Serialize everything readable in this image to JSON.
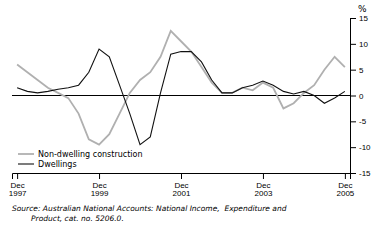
{
  "chart_data": {
    "type": "line",
    "ylabel": "%",
    "annotations": [
      "Source: Australian National Accounts: National Income,  Expenditure and",
      "        Product, cat. no. 5206.0."
    ],
    "categories": [
      "Dec\n1997",
      null,
      null,
      null,
      null,
      null,
      null,
      null,
      "Dec\n1999",
      null,
      null,
      null,
      null,
      null,
      null,
      null,
      "Dec\n2001",
      null,
      null,
      null,
      null,
      null,
      null,
      null,
      "Dec\n2003",
      null,
      null,
      null,
      null,
      null,
      null,
      null,
      "Dec\n2005"
    ],
    "series": [
      {
        "name": "Non-dwelling construction",
        "color": "#b0b0b0",
        "values": [
          6.0,
          4.5,
          3.0,
          1.5,
          0.5,
          -0.5,
          -3.5,
          -8.5,
          -9.5,
          -7.5,
          -3.5,
          0.5,
          3.0,
          4.5,
          7.5,
          12.5,
          10.5,
          8.5,
          5.5,
          2.5,
          0.5,
          0.5,
          1.5,
          1.0,
          2.5,
          1.5,
          -2.5,
          -1.5,
          0.5,
          2.0,
          5.0,
          7.5,
          5.5
        ]
      },
      {
        "name": "Dwellings",
        "color": "#111111",
        "values": [
          1.5,
          0.8,
          0.5,
          0.8,
          1.2,
          1.5,
          2.0,
          4.5,
          9.0,
          7.5,
          2.0,
          -3.5,
          -9.5,
          -8.0,
          0.5,
          8.0,
          8.5,
          8.5,
          6.5,
          3.0,
          0.5,
          0.5,
          1.5,
          2.0,
          2.8,
          2.0,
          0.8,
          0.3,
          0.8,
          0.0,
          -1.5,
          -0.5,
          0.8
        ]
      }
    ],
    "ylim": [
      -15,
      15
    ],
    "yticks": [
      -15,
      -10,
      -5,
      0,
      5,
      10,
      15
    ],
    "grid": false,
    "legend": "lower left"
  }
}
